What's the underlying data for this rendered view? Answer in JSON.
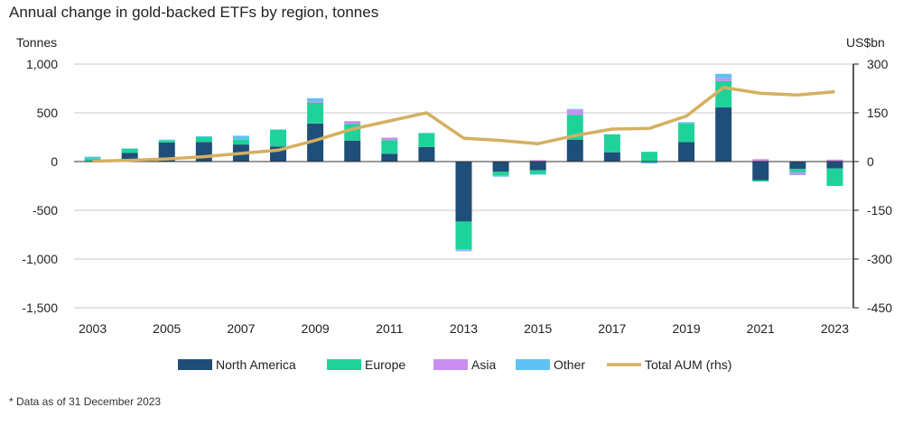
{
  "chart_data": {
    "type": "bar",
    "title": "Annual change in gold-backed ETFs by region, tonnes",
    "footnote": "* Data as of 31 December 2023",
    "ylabel_left": "Tonnes",
    "ylabel_right": "US$bn",
    "ylim_left": [
      -1500,
      1000
    ],
    "ylim_right": [
      -450,
      300
    ],
    "yticks_left": [
      "1,000",
      "500",
      "0",
      "-500",
      "-1,000",
      "-1,500"
    ],
    "yticks_left_values": [
      1000,
      500,
      0,
      -500,
      -1000,
      -1500
    ],
    "yticks_right": [
      "300",
      "150",
      "0",
      "-150",
      "-300",
      "-450"
    ],
    "yticks_right_values": [
      300,
      150,
      0,
      -150,
      -300,
      -450
    ],
    "x": [
      2003,
      2004,
      2005,
      2006,
      2007,
      2008,
      2009,
      2010,
      2011,
      2012,
      2013,
      2014,
      2015,
      2016,
      2017,
      2018,
      2019,
      2020,
      2021,
      2022,
      2023
    ],
    "xtick_labels": [
      "2003",
      "2005",
      "2007",
      "2009",
      "2011",
      "2013",
      "2015",
      "2017",
      "2019",
      "2021",
      "2023"
    ],
    "stacked": true,
    "series": [
      {
        "name": "North America",
        "color": "#1f4e79",
        "type": "bar",
        "values": [
          5,
          90,
          195,
          200,
          175,
          155,
          390,
          215,
          80,
          150,
          -615,
          -105,
          -90,
          225,
          95,
          0,
          200,
          555,
          -190,
          -75,
          -70
        ]
      },
      {
        "name": "Europe",
        "color": "#1ed39a",
        "type": "bar",
        "values": [
          30,
          40,
          20,
          50,
          50,
          170,
          215,
          170,
          140,
          140,
          -285,
          -40,
          -35,
          255,
          185,
          100,
          190,
          270,
          -15,
          -35,
          -180
        ]
      },
      {
        "name": "Asia",
        "color": "#c98ef0",
        "type": "bar",
        "values": [
          0,
          0,
          0,
          0,
          0,
          0,
          15,
          30,
          25,
          0,
          -10,
          0,
          15,
          50,
          0,
          0,
          0,
          30,
          25,
          -25,
          20
        ]
      },
      {
        "name": "Other",
        "color": "#5ec2f2",
        "type": "bar",
        "values": [
          15,
          5,
          10,
          10,
          40,
          5,
          30,
          0,
          0,
          5,
          -10,
          -10,
          -10,
          10,
          0,
          -20,
          15,
          45,
          0,
          -5,
          0
        ]
      },
      {
        "name": "Total AUM (rhs)",
        "color": "#d4b060",
        "type": "line",
        "axis": "right",
        "values": [
          1,
          4,
          8,
          15,
          25,
          35,
          65,
          100,
          125,
          150,
          72,
          65,
          55,
          80,
          100,
          102,
          140,
          228,
          210,
          205,
          215
        ]
      }
    ]
  }
}
